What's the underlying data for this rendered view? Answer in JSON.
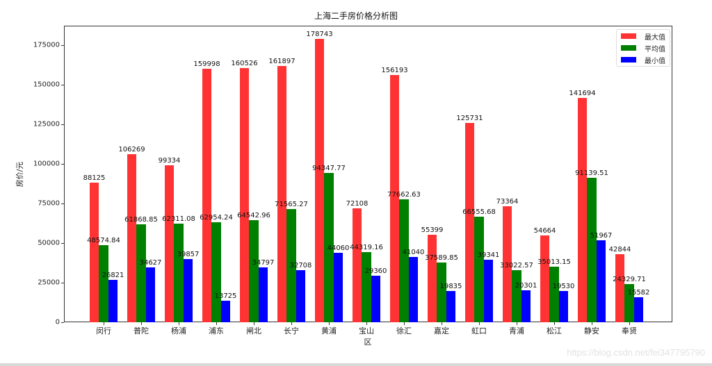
{
  "chart_data": {
    "type": "bar",
    "title": "上海二手房价格分析图",
    "xlabel": "区",
    "ylabel": "房价/元",
    "ylim": [
      0,
      187000
    ],
    "yticks": [
      0,
      25000,
      50000,
      75000,
      100000,
      125000,
      150000,
      175000
    ],
    "grid": false,
    "legend_position": "upper right",
    "categories": [
      "闵行",
      "普陀",
      "杨浦",
      "浦东",
      "闸北",
      "长宁",
      "黄浦",
      "宝山",
      "徐汇",
      "嘉定",
      "虹口",
      "青浦",
      "松江",
      "静安",
      "奉贤"
    ],
    "series": [
      {
        "name": "最大值",
        "color": "#ff3333",
        "values": [
          88125,
          106269,
          99334,
          159998,
          160526,
          161897,
          178743,
          72108,
          156193,
          55399,
          125731,
          73364,
          54664,
          141694,
          42844
        ],
        "labels": [
          "88125",
          "106269",
          "99334",
          "159998",
          "160526",
          "161897",
          "178743",
          "72108",
          "156193",
          "55399",
          "125731",
          "73364",
          "54664",
          "141694",
          "42844"
        ]
      },
      {
        "name": "平均值",
        "color": "#008000",
        "values": [
          48574.84,
          61868.85,
          62311.08,
          62954.24,
          64542.96,
          71565.27,
          94347.77,
          44319.16,
          77662.63,
          37589.85,
          66555.68,
          33022.57,
          35013.15,
          91139.51,
          24329.71
        ],
        "labels": [
          "48574.84",
          "61868.85",
          "62311.08",
          "62954.24",
          "64542.96",
          "71565.27",
          "94347.77",
          "44319.16",
          "77662.63",
          "37589.85",
          "66555.68",
          "33022.57",
          "35013.15",
          "91139.51",
          "24329.71"
        ]
      },
      {
        "name": "最小值",
        "color": "#0000ff",
        "values": [
          26821,
          34627,
          39857,
          13725,
          34797,
          32708,
          44060,
          29360,
          41040,
          19835,
          39341,
          20301,
          19530,
          51967,
          15582
        ],
        "labels": [
          "26821",
          "34627",
          "39857",
          "13725",
          "34797",
          "32708",
          "44060",
          "29360",
          "41040",
          "19835",
          "39341",
          "20301",
          "19530",
          "51967",
          "15582"
        ]
      }
    ]
  },
  "watermark": "https://blog.csdn.net/fei347795790"
}
